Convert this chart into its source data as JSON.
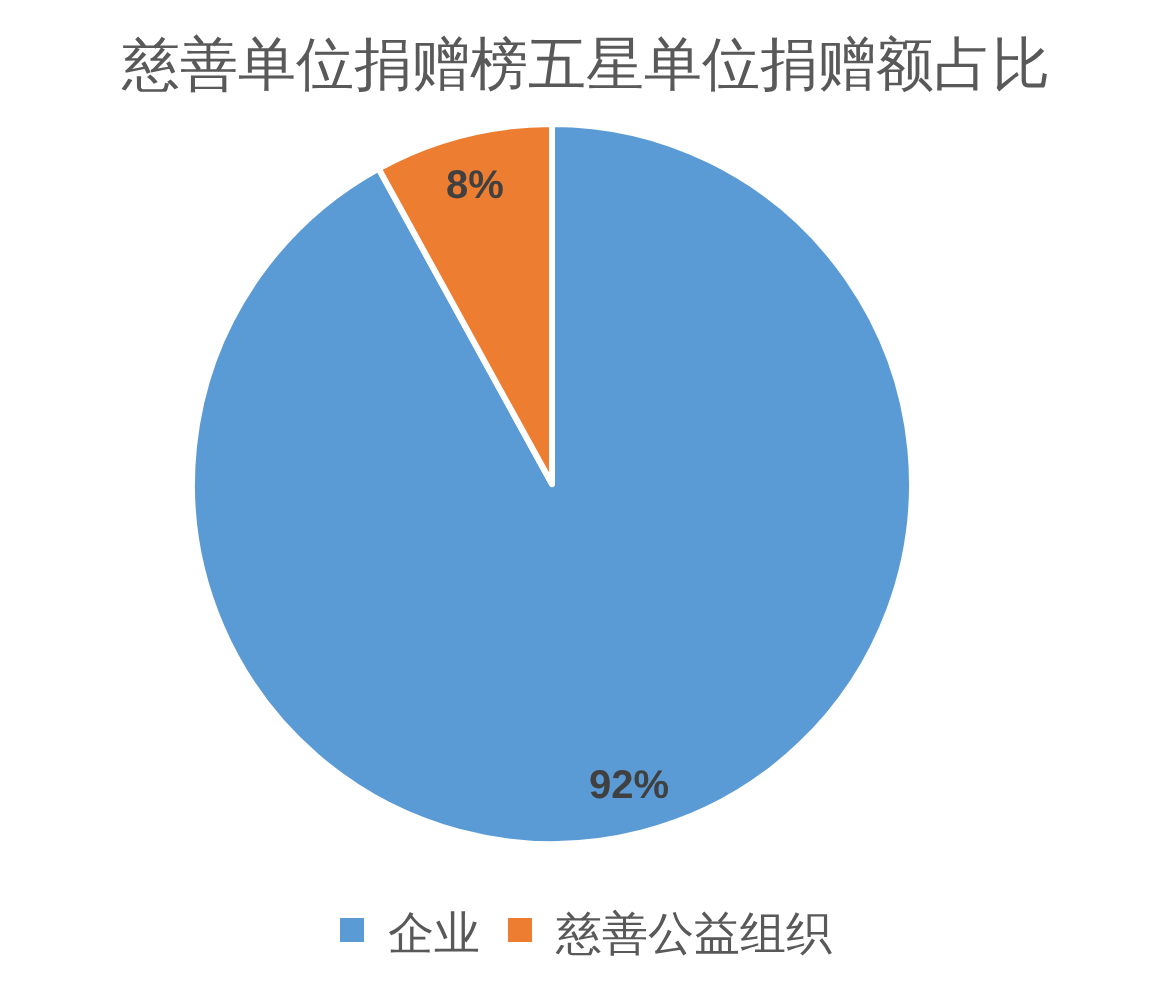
{
  "chart_data": {
    "type": "pie",
    "title": "慈善单位捐赠榜五星单位捐赠额占比",
    "categories": [
      "企业",
      "慈善公益组织"
    ],
    "values": [
      92,
      8
    ],
    "colors": [
      "#5b9bd5",
      "#ed7d31"
    ],
    "value_labels": [
      "92%",
      "8%"
    ],
    "legend": "bottom"
  }
}
